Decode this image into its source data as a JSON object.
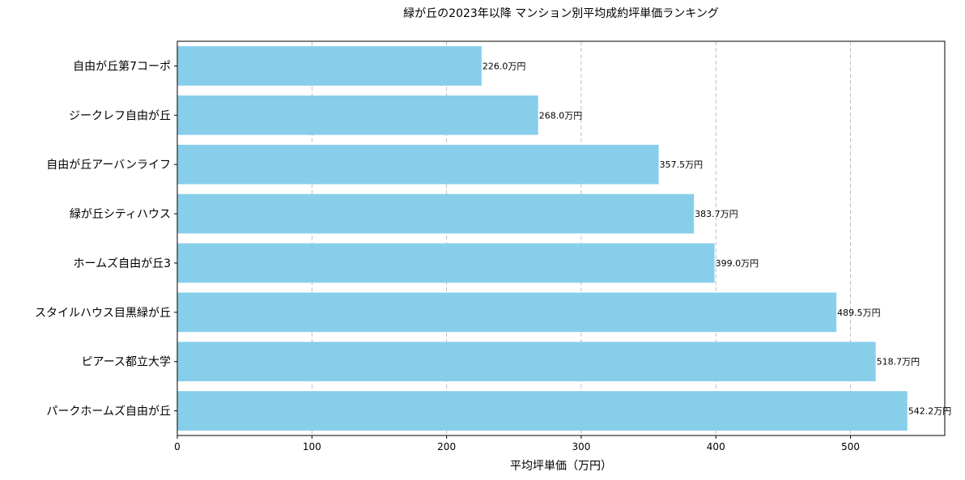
{
  "chart_data": {
    "type": "bar",
    "orientation": "horizontal",
    "title": "緑が丘の2023年以降 マンション別平均成約坪単価ランキング",
    "xlabel": "平均坪単価（万円）",
    "ylabel": "",
    "xlim": [
      0,
      570
    ],
    "xticks": [
      0,
      100,
      200,
      300,
      400,
      500
    ],
    "grid": "x, dashed",
    "bar_color": "#87CEEB",
    "categories": [
      "自由が丘第7コーポ",
      "ジークレフ自由が丘",
      "自由が丘アーバンライフ",
      "緑が丘シティハウス",
      "ホームズ自由が丘3",
      "スタイルハウス目黒緑が丘",
      "ピアース都立大学",
      "パークホームズ自由が丘"
    ],
    "values": [
      226.0,
      268.0,
      357.5,
      383.7,
      399.0,
      489.5,
      518.7,
      542.2
    ],
    "data_labels": [
      "226.0万円",
      "268.0万円",
      "357.5万円",
      "383.7万円",
      "399.0万円",
      "489.5万円",
      "518.7万円",
      "542.2万円"
    ]
  }
}
